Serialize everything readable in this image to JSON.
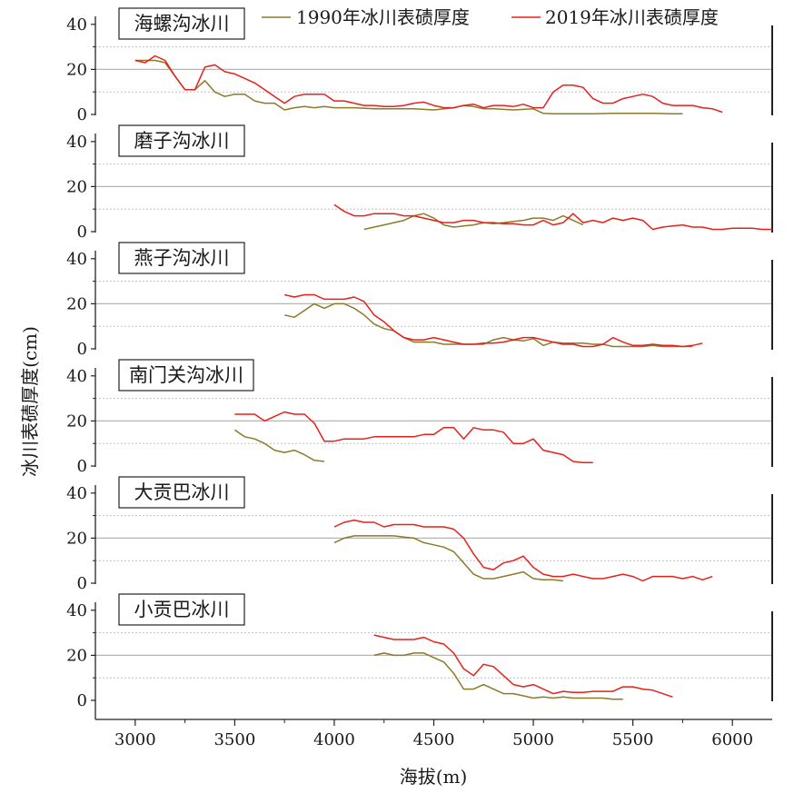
{
  "chart_data": {
    "type": "line",
    "xlabel": "海拔(m)",
    "ylabel": "冰川表碛厚度(cm)",
    "xlim": [
      2800,
      6200
    ],
    "x_ticks": [
      3000,
      3500,
      4000,
      4500,
      5000,
      5500,
      6000
    ],
    "ylim": [
      0,
      40
    ],
    "y_ticks": [
      0,
      20,
      40
    ],
    "grid": "horizontal dotted lines at 10 and 30, solid gray line at 20",
    "legend_position": "top",
    "legend": [
      {
        "name": "1990年冰川表碛厚度",
        "color": "#8c7a2a"
      },
      {
        "name": "2019年冰川表碛厚度",
        "color": "#e8201a"
      }
    ],
    "panels": [
      {
        "title": "海螺沟冰川",
        "series": [
          {
            "name": "1990年冰川表碛厚度",
            "color": "#8c7a2a",
            "x": [
              3000,
              3050,
              3100,
              3150,
              3200,
              3250,
              3300,
              3350,
              3400,
              3450,
              3500,
              3550,
              3600,
              3650,
              3700,
              3750,
              3800,
              3850,
              3900,
              3950,
              4000,
              4100,
              4200,
              4300,
              4400,
              4500,
              4600,
              4650,
              4700,
              4750,
              4800,
              4900,
              5000,
              5050,
              5100,
              5200,
              5300,
              5400,
              5500,
              5600,
              5700,
              5750
            ],
            "y": [
              24,
              24,
              24,
              23,
              17,
              11,
              11,
              15,
              10,
              8,
              9,
              9,
              6,
              5,
              5,
              2,
              3,
              3.5,
              3,
              3.5,
              3,
              3,
              2.5,
              2.5,
              2.5,
              2,
              3,
              4,
              3.5,
              2.5,
              2.5,
              2,
              2.5,
              0.5,
              0.3,
              0.3,
              0.3,
              0.5,
              0.5,
              0.5,
              0.3,
              0.3
            ]
          },
          {
            "name": "2019年冰川表碛厚度",
            "color": "#e8201a",
            "x": [
              3000,
              3050,
              3100,
              3150,
              3200,
              3250,
              3300,
              3350,
              3400,
              3450,
              3500,
              3550,
              3600,
              3650,
              3700,
              3750,
              3800,
              3850,
              3900,
              3950,
              4000,
              4050,
              4100,
              4150,
              4200,
              4250,
              4300,
              4350,
              4400,
              4450,
              4500,
              4550,
              4600,
              4650,
              4700,
              4750,
              4800,
              4850,
              4900,
              4950,
              5000,
              5050,
              5100,
              5150,
              5200,
              5250,
              5300,
              5350,
              5400,
              5450,
              5500,
              5550,
              5600,
              5650,
              5700,
              5750,
              5800,
              5850,
              5900,
              5950
            ],
            "y": [
              24,
              23,
              26,
              24,
              17,
              11,
              11,
              21,
              22,
              19,
              18,
              16,
              14,
              11,
              8,
              5,
              8,
              9,
              9,
              9,
              6,
              6,
              5,
              4,
              4,
              3.5,
              3.5,
              4,
              5,
              5.5,
              4,
              3,
              3,
              4,
              4.5,
              3,
              4,
              4,
              3.5,
              4.5,
              3,
              3,
              10,
              13,
              13,
              12,
              7,
              5,
              5,
              7,
              8,
              9,
              8,
              5,
              4,
              4,
              4,
              3,
              2.5,
              1
            ]
          }
        ]
      },
      {
        "title": "磨子沟冰川",
        "series": [
          {
            "name": "1990年冰川表碛厚度",
            "color": "#8c7a2a",
            "x": [
              4150,
              4200,
              4250,
              4300,
              4350,
              4400,
              4450,
              4500,
              4550,
              4600,
              4650,
              4700,
              4750,
              4800,
              4850,
              4900,
              4950,
              5000,
              5050,
              5100,
              5150,
              5200,
              5250
            ],
            "y": [
              1,
              2,
              3,
              4,
              5,
              7,
              8,
              6,
              3,
              2,
              2.5,
              3,
              4,
              3.5,
              4,
              4.5,
              5,
              6,
              6,
              5,
              7,
              5,
              3
            ]
          },
          {
            "name": "2019年冰川表碛厚度",
            "color": "#e8201a",
            "x": [
              4000,
              4050,
              4100,
              4150,
              4200,
              4250,
              4300,
              4350,
              4400,
              4450,
              4500,
              4550,
              4600,
              4650,
              4700,
              4750,
              4800,
              4850,
              4900,
              4950,
              5000,
              5050,
              5100,
              5150,
              5200,
              5250,
              5300,
              5350,
              5400,
              5450,
              5500,
              5550,
              5600,
              5650,
              5700,
              5750,
              5800,
              5850,
              5900,
              5950,
              6000,
              6050,
              6100,
              6150,
              6200
            ],
            "y": [
              12,
              9,
              7,
              7,
              8,
              8,
              8,
              7,
              7,
              6,
              5,
              4,
              4,
              5,
              5,
              4,
              4,
              3.5,
              3.5,
              3,
              3,
              5,
              3,
              4,
              8,
              4,
              5,
              4,
              6,
              5,
              6,
              5,
              1,
              2,
              2.5,
              3,
              2,
              2,
              1,
              1,
              1.5,
              1.5,
              1.5,
              1,
              1
            ]
          }
        ]
      },
      {
        "title": "燕子沟冰川",
        "series": [
          {
            "name": "1990年冰川表碛厚度",
            "color": "#8c7a2a",
            "x": [
              3750,
              3800,
              3850,
              3900,
              3950,
              4000,
              4050,
              4100,
              4150,
              4200,
              4250,
              4300,
              4350,
              4400,
              4450,
              4500,
              4550,
              4600,
              4650,
              4700,
              4750,
              4800,
              4850,
              4900,
              4950,
              5000,
              5050,
              5100,
              5150,
              5200,
              5250,
              5300,
              5350,
              5400,
              5450,
              5500,
              5550,
              5600,
              5650,
              5700,
              5750,
              5800
            ],
            "y": [
              15,
              14,
              17,
              20,
              18,
              20,
              20,
              18,
              15,
              11,
              9,
              8,
              5,
              3,
              3,
              3,
              2,
              2,
              2,
              2,
              2,
              4,
              5,
              4,
              3.5,
              4.5,
              1.5,
              3,
              2.5,
              2.5,
              2.5,
              2,
              2,
              1,
              1,
              1,
              1,
              1.5,
              1,
              1,
              1,
              1
            ]
          },
          {
            "name": "2019年冰川表碛厚度",
            "color": "#e8201a",
            "x": [
              3750,
              3800,
              3850,
              3900,
              3950,
              4000,
              4050,
              4100,
              4150,
              4200,
              4250,
              4300,
              4350,
              4400,
              4450,
              4500,
              4550,
              4600,
              4650,
              4700,
              4750,
              4800,
              4850,
              4900,
              4950,
              5000,
              5050,
              5100,
              5150,
              5200,
              5250,
              5300,
              5350,
              5400,
              5450,
              5500,
              5550,
              5600,
              5650,
              5700,
              5750,
              5800,
              5850
            ],
            "y": [
              24,
              23,
              24,
              24,
              22,
              22,
              22,
              23,
              21,
              15,
              12,
              8,
              5,
              4,
              4,
              5,
              4,
              3,
              2,
              2,
              2.5,
              2.5,
              3,
              4,
              5,
              5,
              4,
              3,
              2,
              2,
              1,
              1,
              2,
              5,
              3,
              1.5,
              1.5,
              2,
              1.5,
              1.5,
              1,
              1.5,
              2.5
            ]
          }
        ]
      },
      {
        "title": "南门关沟冰川",
        "series": [
          {
            "name": "1990年冰川表碛厚度",
            "color": "#8c7a2a",
            "x": [
              3500,
              3550,
              3600,
              3650,
              3700,
              3750,
              3800,
              3850,
              3900,
              3950
            ],
            "y": [
              16,
              13,
              12,
              10,
              7,
              6,
              7,
              5,
              2.5,
              2
            ]
          },
          {
            "name": "2019年冰川表碛厚度",
            "color": "#e8201a",
            "x": [
              3500,
              3550,
              3600,
              3650,
              3700,
              3750,
              3800,
              3850,
              3900,
              3950,
              4000,
              4050,
              4100,
              4150,
              4200,
              4250,
              4300,
              4350,
              4400,
              4450,
              4500,
              4550,
              4600,
              4650,
              4700,
              4750,
              4800,
              4850,
              4900,
              4950,
              5000,
              5050,
              5100,
              5150,
              5200,
              5250,
              5300
            ],
            "y": [
              23,
              23,
              23,
              20,
              22,
              24,
              23,
              23,
              19,
              11,
              11,
              12,
              12,
              12,
              13,
              13,
              13,
              13,
              13,
              14,
              14,
              17,
              17,
              12,
              17,
              16,
              16,
              15,
              10,
              10,
              12,
              7,
              6,
              5,
              2,
              1.5,
              1.5
            ]
          }
        ]
      },
      {
        "title": "大贡巴冰川",
        "series": [
          {
            "name": "1990年冰川表碛厚度",
            "color": "#8c7a2a",
            "x": [
              4000,
              4050,
              4100,
              4150,
              4200,
              4250,
              4300,
              4350,
              4400,
              4450,
              4500,
              4550,
              4600,
              4650,
              4700,
              4750,
              4800,
              4850,
              4900,
              4950,
              5000,
              5050,
              5100,
              5150
            ],
            "y": [
              18,
              20,
              21,
              21,
              21,
              21,
              21,
              20.5,
              20,
              18,
              17,
              16,
              14,
              9,
              4,
              2,
              2,
              3,
              4,
              5,
              2,
              1.5,
              1.5,
              1
            ]
          },
          {
            "name": "2019年冰川表碛厚度",
            "color": "#e8201a",
            "x": [
              4000,
              4050,
              4100,
              4150,
              4200,
              4250,
              4300,
              4350,
              4400,
              4450,
              4500,
              4550,
              4600,
              4650,
              4700,
              4750,
              4800,
              4850,
              4900,
              4950,
              5000,
              5050,
              5100,
              5150,
              5200,
              5250,
              5300,
              5350,
              5400,
              5450,
              5500,
              5550,
              5600,
              5650,
              5700,
              5750,
              5800,
              5850,
              5900
            ],
            "y": [
              25,
              27,
              28,
              27,
              27,
              25,
              26,
              26,
              26,
              25,
              25,
              25,
              24,
              20,
              13,
              7,
              6,
              9,
              10,
              12,
              7,
              4,
              3,
              3,
              4,
              3,
              2,
              2,
              3,
              4,
              3,
              1,
              3,
              3,
              3,
              2,
              3,
              1.5,
              3
            ]
          }
        ]
      },
      {
        "title": "小贡巴冰川",
        "series": [
          {
            "name": "1990年冰川表碛厚度",
            "color": "#8c7a2a",
            "x": [
              4200,
              4250,
              4300,
              4350,
              4400,
              4450,
              4500,
              4550,
              4600,
              4650,
              4700,
              4750,
              4800,
              4850,
              4900,
              4950,
              5000,
              5050,
              5100,
              5150,
              5200,
              5250,
              5300,
              5350,
              5400,
              5450
            ],
            "y": [
              20,
              21,
              20,
              20,
              21,
              21,
              19,
              17,
              12,
              5,
              5,
              7,
              5,
              3,
              3,
              2,
              1,
              1.5,
              1,
              1.5,
              1,
              1,
              1,
              1,
              0.5,
              0.5
            ]
          },
          {
            "name": "2019年冰川表碛厚度",
            "color": "#e8201a",
            "x": [
              4200,
              4250,
              4300,
              4350,
              4400,
              4450,
              4500,
              4550,
              4600,
              4650,
              4700,
              4750,
              4800,
              4850,
              4900,
              4950,
              5000,
              5050,
              5100,
              5150,
              5200,
              5250,
              5300,
              5350,
              5400,
              5450,
              5500,
              5550,
              5600,
              5650,
              5700
            ],
            "y": [
              29,
              28,
              27,
              27,
              27,
              28,
              26,
              25,
              21,
              14,
              11,
              16,
              15,
              11,
              7,
              6,
              7,
              5,
              3,
              4,
              3.5,
              3.5,
              4,
              4,
              4,
              6,
              6,
              5,
              4.5,
              3,
              1.5
            ]
          }
        ]
      }
    ]
  }
}
